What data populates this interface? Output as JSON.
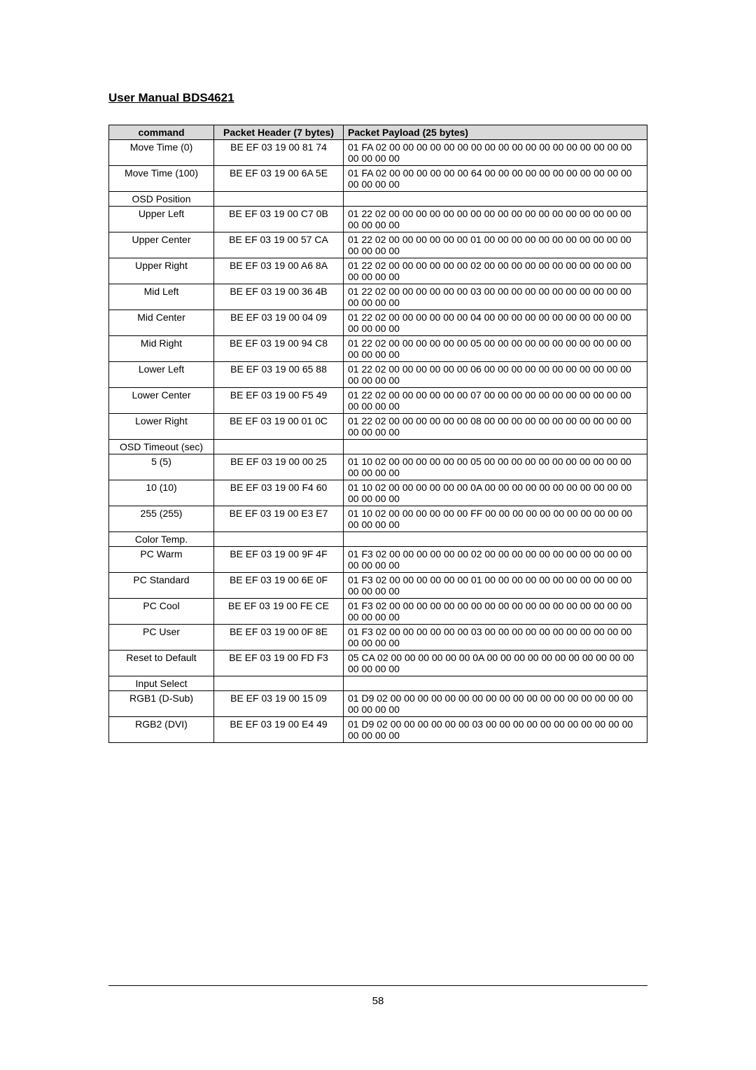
{
  "header": {
    "title": "User Manual BDS4621"
  },
  "table": {
    "columns": [
      "command",
      "Packet Header (7 bytes)",
      "Packet Payload (25 bytes)"
    ],
    "rows": [
      {
        "cmd": "Move Time (0)",
        "header": "BE EF 03 19 00 81 74",
        "payload": "01 FA 02 00 00 00 00 00 00 00 00 00 00 00 00 00 00 00 00 00 00 00 00 00 00"
      },
      {
        "cmd": "Move Time (100)",
        "header": "BE EF 03 19 00 6A 5E",
        "payload": "01 FA 02 00 00 00 00 00 00 64 00 00 00 00 00 00 00 00 00 00 00 00 00 00 00"
      },
      {
        "cmd": "OSD Position",
        "header": "",
        "payload": "",
        "section": true
      },
      {
        "cmd": "Upper Left",
        "header": "BE EF 03 19 00 C7 0B",
        "payload": "01 22 02 00 00 00 00 00 00 00 00 00 00 00 00 00 00 00 00 00 00 00 00 00 00"
      },
      {
        "cmd": "Upper Center",
        "header": "BE EF 03 19 00 57 CA",
        "payload": "01 22 02 00 00 00 00 00 00 01 00 00 00 00 00 00 00 00 00 00 00 00 00 00 00"
      },
      {
        "cmd": "Upper Right",
        "header": "BE EF 03 19 00 A6 8A",
        "payload": "01 22 02 00 00 00 00 00 00 02 00 00 00 00 00 00 00 00 00 00 00 00 00 00 00"
      },
      {
        "cmd": "Mid Left",
        "header": "BE EF 03 19 00 36 4B",
        "payload": "01 22 02 00 00 00 00 00 00 03 00 00 00 00 00 00 00 00 00 00 00 00 00 00 00"
      },
      {
        "cmd": "Mid Center",
        "header": "BE EF 03 19 00 04 09",
        "payload": "01 22 02 00 00 00 00 00 00 04 00 00 00 00 00 00 00 00 00 00 00 00 00 00 00"
      },
      {
        "cmd": "Mid Right",
        "header": "BE EF 03 19 00 94 C8",
        "payload": "01 22 02 00 00 00 00 00 00 05 00 00 00 00 00 00 00 00 00 00 00 00 00 00 00"
      },
      {
        "cmd": "Lower Left",
        "header": "BE EF 03 19 00 65 88",
        "payload": "01 22 02 00 00 00 00 00 00 06 00 00 00 00 00 00 00 00 00 00 00 00 00 00 00"
      },
      {
        "cmd": "Lower Center",
        "header": "BE EF 03 19 00 F5 49",
        "payload": "01 22 02 00 00 00 00 00 00 07 00 00 00 00 00 00 00 00 00 00 00 00 00 00 00"
      },
      {
        "cmd": "Lower Right",
        "header": "BE EF 03 19 00 01 0C",
        "payload": "01 22 02 00 00 00 00 00 00 08 00 00 00 00 00 00 00 00 00 00 00 00 00 00 00"
      },
      {
        "cmd": "OSD Timeout (sec)",
        "header": "",
        "payload": "",
        "section": true
      },
      {
        "cmd": "5 (5)",
        "header": "BE EF 03 19 00 00 25",
        "payload": "01 10 02 00 00 00 00 00 00 05 00 00 00 00 00 00 00 00 00 00 00 00 00 00 00"
      },
      {
        "cmd": "10 (10)",
        "header": "BE EF 03 19 00 F4 60",
        "payload": "01 10 02 00 00 00 00 00 00 0A 00 00 00 00 00 00 00 00 00 00 00 00 00 00 00"
      },
      {
        "cmd": "255 (255)",
        "header": "BE EF 03 19 00 E3 E7",
        "payload": "01 10 02 00 00 00 00 00 00 FF 00 00 00 00 00 00 00 00 00 00 00 00 00 00 00"
      },
      {
        "cmd": "Color Temp.",
        "header": "",
        "payload": "",
        "section": true
      },
      {
        "cmd": "PC Warm",
        "header": "BE EF 03 19 00 9F 4F",
        "payload": "01 F3 02 00 00 00 00 00 00 02 00 00 00 00 00 00 00 00 00 00 00 00 00 00 00"
      },
      {
        "cmd": "PC Standard",
        "header": "BE EF 03 19 00 6E 0F",
        "payload": "01 F3 02 00 00 00 00 00 00 01 00 00 00 00 00 00 00 00 00 00 00 00 00 00 00"
      },
      {
        "cmd": "PC Cool",
        "header": "BE EF 03 19 00 FE CE",
        "payload": "01 F3 02 00 00 00 00 00 00 00 00 00 00 00 00 00 00 00 00 00 00 00 00 00 00"
      },
      {
        "cmd": "PC User",
        "header": "BE EF 03 19 00 0F 8E",
        "payload": "01 F3 02 00 00 00 00 00 00 03 00 00 00 00 00 00 00 00 00 00 00 00 00 00 00"
      },
      {
        "cmd": "Reset to Default",
        "header": "BE EF 03 19 00 FD F3",
        "payload": "05 CA 02 00 00 00 00 00 00 0A 00 00 00 00 00 00 00 00 00 00 00 00 00 00 00"
      },
      {
        "cmd": "Input Select",
        "header": "",
        "payload": "",
        "section": true
      },
      {
        "cmd": "RGB1 (D-Sub)",
        "header": "BE EF 03 19 00 15 09",
        "payload": "01 D9 02 00 00 00 00 00 00 00 00 00 00 00 00 00 00 00 00 00 00 00 00 00 00"
      },
      {
        "cmd": "RGB2 (DVI)",
        "header": "BE EF 03 19 00 E4 49",
        "payload": "01 D9 02 00 00 00 00 00 00 03 00 00 00 00 00 00 00 00 00 00 00 00 00 00 00"
      }
    ]
  },
  "footer": {
    "page_number": "58"
  },
  "styling": {
    "header_bg": "#d9d9d9",
    "border_color": "#000000",
    "text_color": "#000000",
    "font_size": 14,
    "title_font_size": 17
  }
}
